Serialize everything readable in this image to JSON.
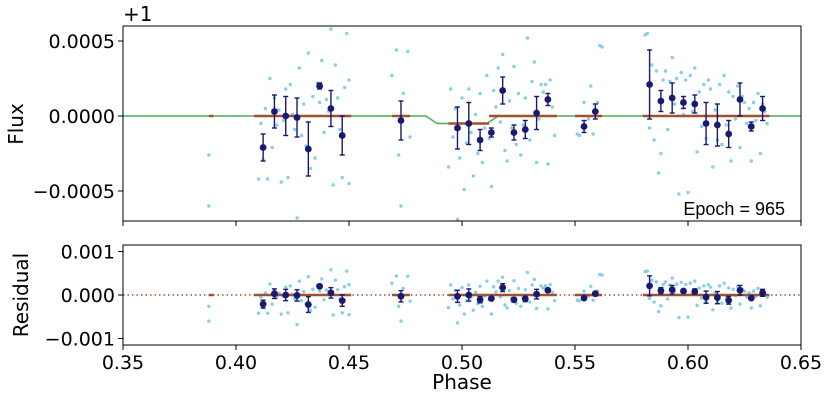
{
  "chart_data": [
    {
      "type": "scatter",
      "panel": "top",
      "ylabel": "Flux",
      "offset_label": "+1",
      "annotation": "Epoch = 965",
      "xlim": [
        0.35,
        0.65
      ],
      "ylim": [
        -0.0007,
        0.0006
      ],
      "yticks": [
        -0.0005,
        0.0,
        0.0005
      ],
      "ytick_labels": [
        "−0.0005",
        "0.0000",
        "0.0005"
      ],
      "colors": {
        "raw": "#87ceeb",
        "binned": "#191970",
        "model": "#4caf50",
        "segments": "#a0522d"
      },
      "model_transit": {
        "ingress_start": 0.484,
        "ingress_end": 0.489,
        "egress_start": 0.511,
        "egress_end": 0.516,
        "depth": -5e-05
      },
      "binned": [
        {
          "x": 0.412,
          "y": -0.00021,
          "err": 9e-05
        },
        {
          "x": 0.417,
          "y": 3e-05,
          "err": 0.00011
        },
        {
          "x": 0.422,
          "y": 0.0,
          "err": 0.00013
        },
        {
          "x": 0.427,
          "y": -1e-05,
          "err": 0.00013
        },
        {
          "x": 0.432,
          "y": -0.00022,
          "err": 0.00018
        },
        {
          "x": 0.437,
          "y": 0.0002,
          "err": 2e-05
        },
        {
          "x": 0.442,
          "y": 5e-05,
          "err": 0.00012
        },
        {
          "x": 0.447,
          "y": -0.00013,
          "err": 0.00013
        },
        {
          "x": 0.473,
          "y": -3e-05,
          "err": 0.00013
        },
        {
          "x": 0.498,
          "y": -8e-05,
          "err": 0.00014
        },
        {
          "x": 0.503,
          "y": -5e-05,
          "err": 0.00014
        },
        {
          "x": 0.508,
          "y": -0.00016,
          "err": 7e-05
        },
        {
          "x": 0.513,
          "y": -0.00011,
          "err": 3e-05
        },
        {
          "x": 0.518,
          "y": 0.00017,
          "err": 9e-05
        },
        {
          "x": 0.523,
          "y": -0.00011,
          "err": 5e-05
        },
        {
          "x": 0.528,
          "y": -9e-05,
          "err": 6e-05
        },
        {
          "x": 0.533,
          "y": 2e-05,
          "err": 0.00011
        },
        {
          "x": 0.538,
          "y": 0.00011,
          "err": 4e-05
        },
        {
          "x": 0.554,
          "y": -7e-05,
          "err": 4e-05
        },
        {
          "x": 0.559,
          "y": 3e-05,
          "err": 5e-05
        },
        {
          "x": 0.583,
          "y": 0.00021,
          "err": 0.00023
        },
        {
          "x": 0.588,
          "y": 0.0001,
          "err": 7e-05
        },
        {
          "x": 0.593,
          "y": 0.00012,
          "err": 0.0001
        },
        {
          "x": 0.598,
          "y": 9e-05,
          "err": 4e-05
        },
        {
          "x": 0.603,
          "y": 8e-05,
          "err": 6e-05
        },
        {
          "x": 0.608,
          "y": -5e-05,
          "err": 0.00014
        },
        {
          "x": 0.613,
          "y": -6e-05,
          "err": 0.00014
        },
        {
          "x": 0.618,
          "y": -0.00012,
          "err": 9e-05
        },
        {
          "x": 0.623,
          "y": 0.00011,
          "err": 0.00011
        },
        {
          "x": 0.628,
          "y": -7e-05,
          "err": 3e-05
        },
        {
          "x": 0.633,
          "y": 5e-05,
          "err": 8e-05
        }
      ],
      "segments": [
        {
          "x0": 0.388,
          "x1": 0.39,
          "y": 0.0
        },
        {
          "x0": 0.408,
          "x1": 0.451,
          "y": 0.0
        },
        {
          "x0": 0.469,
          "x1": 0.477,
          "y": 0.0
        },
        {
          "x0": 0.494,
          "x1": 0.512,
          "y": -5e-05
        },
        {
          "x0": 0.512,
          "x1": 0.542,
          "y": 0.0
        },
        {
          "x0": 0.55,
          "x1": 0.562,
          "y": 0.0
        },
        {
          "x0": 0.58,
          "x1": 0.636,
          "y": 0.0
        }
      ],
      "raw": [
        [
          0.388,
          -0.00026
        ],
        [
          0.388,
          -0.0006
        ],
        [
          0.41,
          -0.00042
        ],
        [
          0.411,
          -5e-05
        ],
        [
          0.412,
          -0.00029
        ],
        [
          0.413,
          5e-05
        ],
        [
          0.414,
          -0.00042
        ],
        [
          0.415,
          0.00025
        ],
        [
          0.416,
          -0.00021
        ],
        [
          0.417,
          0.00012
        ],
        [
          0.418,
          -6e-05
        ],
        [
          0.419,
          4e-05
        ],
        [
          0.42,
          -0.00044
        ],
        [
          0.421,
          -3e-05
        ],
        [
          0.422,
          0.00018
        ],
        [
          0.423,
          -0.00041
        ],
        [
          0.424,
          0.00021
        ],
        [
          0.425,
          1e-05
        ],
        [
          0.426,
          -9e-05
        ],
        [
          0.427,
          -0.00068
        ],
        [
          0.428,
          0.00032
        ],
        [
          0.429,
          -0.00013
        ],
        [
          0.43,
          8e-05
        ],
        [
          0.431,
          -0.0002
        ],
        [
          0.432,
          0.00042
        ],
        [
          0.433,
          -0.00035
        ],
        [
          0.434,
          0.00013
        ],
        [
          0.435,
          -0.00028
        ],
        [
          0.436,
          0.00022
        ],
        [
          0.437,
          9e-05
        ],
        [
          0.438,
          0.00037
        ],
        [
          0.439,
          -0.00011
        ],
        [
          0.44,
          0.00011
        ],
        [
          0.441,
          3e-05
        ],
        [
          0.442,
          0.00058
        ],
        [
          0.443,
          -0.00046
        ],
        [
          0.444,
          0.00034
        ],
        [
          0.445,
          0.00012
        ],
        [
          0.446,
          -9e-05
        ],
        [
          0.447,
          -0.00041
        ],
        [
          0.448,
          0.00019
        ],
        [
          0.449,
          0.00055
        ],
        [
          0.45,
          -0.00045
        ],
        [
          0.45,
          0.00024
        ],
        [
          0.469,
          0.00027
        ],
        [
          0.471,
          0.00044
        ],
        [
          0.472,
          -0.00026
        ],
        [
          0.473,
          -0.0006
        ],
        [
          0.474,
          0.00015
        ],
        [
          0.476,
          0.00043
        ],
        [
          0.477,
          -0.00014
        ],
        [
          0.494,
          -0.00034
        ],
        [
          0.495,
          0.00018
        ],
        [
          0.496,
          -0.00014
        ],
        [
          0.497,
          5e-05
        ],
        [
          0.498,
          -0.00069
        ],
        [
          0.499,
          -0.00028
        ],
        [
          0.5,
          0.00012
        ],
        [
          0.501,
          -0.00049
        ],
        [
          0.502,
          -0.00018
        ],
        [
          0.503,
          0.00018
        ],
        [
          0.504,
          -0.00011
        ],
        [
          0.505,
          -0.0004
        ],
        [
          0.506,
          1e-05
        ],
        [
          0.507,
          -0.00025
        ],
        [
          0.508,
          0.00015
        ],
        [
          0.509,
          -0.00031
        ],
        [
          0.51,
          -8e-05
        ],
        [
          0.511,
          0.00027
        ],
        [
          0.512,
          -0.00015
        ],
        [
          0.513,
          -0.00047
        ],
        [
          0.514,
          0.00017
        ],
        [
          0.515,
          6e-05
        ],
        [
          0.516,
          0.00032
        ],
        [
          0.517,
          -4e-05
        ],
        [
          0.518,
          0.00041
        ],
        [
          0.519,
          -0.00023
        ],
        [
          0.52,
          -0.0003
        ],
        [
          0.521,
          0.0001
        ],
        [
          0.522,
          -8e-05
        ],
        [
          0.523,
          0.00033
        ],
        [
          0.524,
          -0.00019
        ],
        [
          0.525,
          0.00015
        ],
        [
          0.526,
          -0.00026
        ],
        [
          0.527,
          -6e-05
        ],
        [
          0.528,
          0.00012
        ],
        [
          0.529,
          0.00052
        ],
        [
          0.53,
          -0.00016
        ],
        [
          0.531,
          0.00023
        ],
        [
          0.532,
          0.00036
        ],
        [
          0.533,
          -0.00031
        ],
        [
          0.534,
          -2e-05
        ],
        [
          0.535,
          0.00021
        ],
        [
          0.536,
          0.00016
        ],
        [
          0.537,
          0.00021
        ],
        [
          0.538,
          -0.00032
        ],
        [
          0.539,
          0.00024
        ],
        [
          0.54,
          6e-05
        ],
        [
          0.541,
          -0.00013
        ],
        [
          0.551,
          -0.00012
        ],
        [
          0.552,
          -0.00013
        ],
        [
          0.554,
          9e-05
        ],
        [
          0.556,
          -2e-05
        ],
        [
          0.557,
          0.0002
        ],
        [
          0.558,
          -0.00012
        ],
        [
          0.56,
          9e-05
        ],
        [
          0.561,
          0.00047
        ],
        [
          0.562,
          0.00046
        ],
        [
          0.581,
          0.00054
        ],
        [
          0.582,
          0.00055
        ],
        [
          0.583,
          -8e-05
        ],
        [
          0.584,
          0.00034
        ],
        [
          0.585,
          -0.00016
        ],
        [
          0.586,
          0.0003
        ],
        [
          0.587,
          -0.00038
        ],
        [
          0.588,
          -0.00025
        ],
        [
          0.589,
          0.00024
        ],
        [
          0.59,
          0.0003
        ],
        [
          0.591,
          -9e-05
        ],
        [
          0.592,
          0.00023
        ],
        [
          0.593,
          0.00039
        ],
        [
          0.594,
          8e-05
        ],
        [
          0.595,
          0.00025
        ],
        [
          0.596,
          -0.00052
        ],
        [
          0.597,
          0.00029
        ],
        [
          0.598,
          1e-05
        ],
        [
          0.599,
          0.00024
        ],
        [
          0.6,
          -0.00051
        ],
        [
          0.601,
          0.00027
        ],
        [
          0.602,
          3e-05
        ],
        [
          0.603,
          0.00032
        ],
        [
          0.604,
          -0.00024
        ],
        [
          0.605,
          0.00016
        ],
        [
          0.606,
          -7e-05
        ],
        [
          0.607,
          0.00021
        ],
        [
          0.608,
          -0.00015
        ],
        [
          0.609,
          0.00024
        ],
        [
          0.61,
          0.00018
        ],
        [
          0.611,
          -0.00034
        ],
        [
          0.612,
          4e-05
        ],
        [
          0.613,
          -0.00016
        ],
        [
          0.614,
          0.00021
        ],
        [
          0.615,
          -0.00019
        ],
        [
          0.616,
          0.00027
        ],
        [
          0.617,
          -6e-05
        ],
        [
          0.618,
          0.00016
        ],
        [
          0.619,
          -0.0003
        ],
        [
          0.62,
          0.00013
        ],
        [
          0.621,
          -2e-05
        ],
        [
          0.622,
          0.0002
        ],
        [
          0.623,
          -0.00021
        ],
        [
          0.624,
          0.00013
        ],
        [
          0.625,
          9e-05
        ],
        [
          0.626,
          -5e-05
        ],
        [
          0.627,
          5e-05
        ],
        [
          0.628,
          -0.0003
        ],
        [
          0.629,
          9e-05
        ],
        [
          0.63,
          -3e-05
        ],
        [
          0.631,
          0.00015
        ],
        [
          0.632,
          -0.00025
        ],
        [
          0.633,
          8e-05
        ],
        [
          0.634,
          3e-05
        ],
        [
          0.635,
          -5e-05
        ]
      ]
    },
    {
      "type": "scatter",
      "panel": "bottom",
      "xlabel": "Phase",
      "ylabel": "Residual",
      "xlim": [
        0.35,
        0.65
      ],
      "ylim": [
        -0.00115,
        0.00115
      ],
      "xticks": [
        0.35,
        0.4,
        0.45,
        0.5,
        0.55,
        0.6,
        0.65
      ],
      "xtick_labels": [
        "0.35",
        "0.40",
        "0.45",
        "0.50",
        "0.55",
        "0.60",
        "0.65"
      ],
      "yticks": [
        -0.001,
        0.0,
        0.001
      ],
      "ytick_labels": [
        "−0.001",
        "0.000",
        "0.001"
      ],
      "zero_line": {
        "y": 0.0,
        "style": "dotted",
        "color": "#a0522d"
      },
      "note": "binned residuals and raw residuals mirror the top panel with the model removed"
    }
  ]
}
